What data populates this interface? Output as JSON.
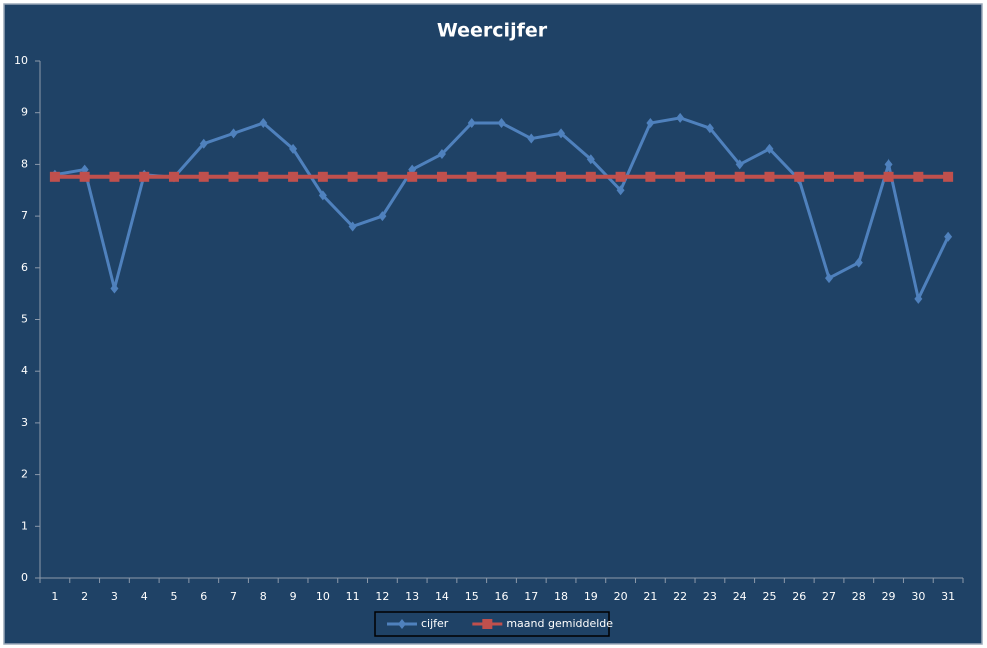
{
  "chart_data": {
    "type": "line",
    "title": "Weercijfer",
    "categories": [
      1,
      2,
      3,
      4,
      5,
      6,
      7,
      8,
      9,
      10,
      11,
      12,
      13,
      14,
      15,
      16,
      17,
      18,
      19,
      20,
      21,
      22,
      23,
      24,
      25,
      26,
      27,
      28,
      29,
      30,
      31
    ],
    "series": [
      {
        "name": "cijfer",
        "color": "#4f81bd",
        "marker": "diamond",
        "values": [
          7.8,
          7.9,
          5.6,
          7.8,
          7.75,
          8.4,
          8.6,
          8.8,
          8.3,
          7.4,
          6.8,
          7.0,
          7.9,
          8.2,
          8.8,
          8.8,
          8.5,
          8.6,
          8.1,
          7.5,
          8.8,
          8.9,
          8.7,
          8.0,
          8.3,
          7.7,
          5.8,
          6.1,
          8.0,
          5.4,
          6.6
        ]
      },
      {
        "name": "maand gemiddelde",
        "color": "#c0504d",
        "marker": "square",
        "values": [
          7.76,
          7.76,
          7.76,
          7.76,
          7.76,
          7.76,
          7.76,
          7.76,
          7.76,
          7.76,
          7.76,
          7.76,
          7.76,
          7.76,
          7.76,
          7.76,
          7.76,
          7.76,
          7.76,
          7.76,
          7.76,
          7.76,
          7.76,
          7.76,
          7.76,
          7.76,
          7.76,
          7.76,
          7.76,
          7.76,
          7.76
        ]
      }
    ],
    "ylim": [
      0,
      10
    ],
    "yticks": [
      0,
      1,
      2,
      3,
      4,
      5,
      6,
      7,
      8,
      9,
      10
    ],
    "grid": false,
    "legend": "bottom"
  }
}
